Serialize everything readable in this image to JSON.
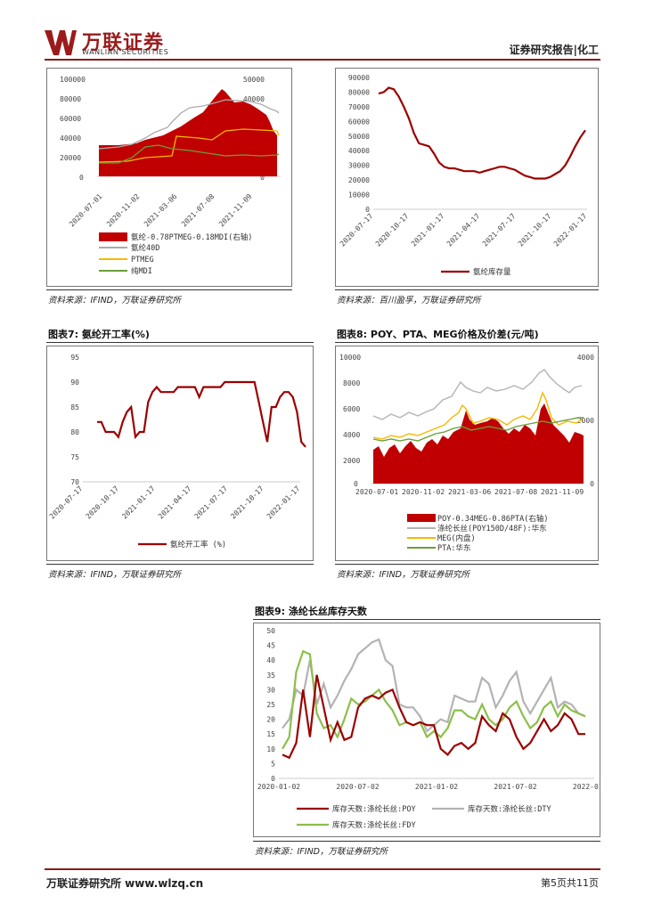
{
  "header": {
    "brand_cn": "万联证券",
    "brand_en": "WANLIAN SECURITIES",
    "report_title": "证券研究报告|化工",
    "brand_color": "#9b1b1b"
  },
  "footer": {
    "company": "万联证券研究所 www.wlzq.cn",
    "page": "第5页共11页"
  },
  "charts": {
    "chart5": {
      "source": "资料来源：IFIND，万联证券研究所",
      "chart_data": {
        "type": "area",
        "x_ticks": [
          "2020-07-01",
          "2020-11-02",
          "2021-03-06",
          "2021-07-08",
          "2021-11-09"
        ],
        "y_left_ticks": [
          "100000",
          "80000",
          "60000",
          "40000",
          "20000",
          "0"
        ],
        "y_right_ticks": [
          "50000",
          "40000",
          "30000",
          "20000",
          "10000",
          "0"
        ],
        "ylim_left": [
          0,
          100000
        ],
        "ylim_right": [
          0,
          50000
        ],
        "legend": [
          "氨纶-0.78PTMEG-0.18MDI(右轴)",
          "氨纶40D",
          "PTMEG",
          "纯MDI"
        ]
      }
    },
    "chart6": {
      "source": "资料来源：百川盈孚，万联证券研究所",
      "chart_data": {
        "type": "line",
        "x_ticks": [
          "2020-07-17",
          "2020-10-17",
          "2021-01-17",
          "2021-04-17",
          "2021-07-17",
          "2021-10-17",
          "2022-01-17"
        ],
        "y_ticks": [
          "90000",
          "80000",
          "70000",
          "60000",
          "50000",
          "40000",
          "30000",
          "20000",
          "10000",
          "0"
        ],
        "ylim": [
          0,
          90000
        ],
        "legend": [
          "氨纶库存量"
        ],
        "series": [
          {
            "name": "氨纶库存量",
            "values": [
              79000,
              80000,
              83000,
              82000,
              77000,
              70000,
              62000,
              52000,
              45000,
              44000,
              43000,
              38000,
              32000,
              29000,
              28000,
              28000,
              27000,
              26000,
              26000,
              26000,
              25000,
              26000,
              27000,
              28000,
              29000,
              29000,
              28000,
              27000,
              25000,
              23000,
              22000,
              21000,
              21000,
              21000,
              22000,
              24000,
              26000,
              30000,
              36000,
              43000,
              49000,
              54000
            ]
          }
        ]
      }
    },
    "chart7": {
      "caption": "图表7: 氨纶开工率(%)",
      "source": "资料来源：IFIND，万联证券研究所",
      "chart_data": {
        "type": "line",
        "x_ticks": [
          "2020-07-17",
          "2020-10-17",
          "2021-01-17",
          "2021-04-17",
          "2021-07-17",
          "2021-10-17",
          "2022-01-17"
        ],
        "y_ticks": [
          "95",
          "90",
          "85",
          "80",
          "75",
          "70"
        ],
        "ylim": [
          70,
          95
        ],
        "legend": [
          "氨纶开工率 (%)"
        ],
        "series": [
          {
            "name": "氨纶开工率",
            "values": [
              82,
              82,
              80,
              80,
              80,
              79,
              82,
              84,
              85,
              79,
              80,
              80,
              86,
              88,
              89,
              88,
              88,
              88,
              88,
              89,
              89,
              89,
              89,
              89,
              87,
              89,
              89,
              89,
              89,
              89,
              90,
              90,
              90,
              90,
              90,
              90,
              90,
              90,
              86,
              82,
              78,
              85,
              85,
              87,
              88,
              88,
              87,
              84,
              78,
              77
            ]
          }
        ]
      }
    },
    "chart8": {
      "caption": "图表8: POY、PTA、MEG价格及价差(元/吨)",
      "source": "资料来源：IFIND，万联证券研究所",
      "chart_data": {
        "type": "area",
        "x_ticks": [
          "2020-07-01",
          "2020-11-02",
          "2021-03-06",
          "2021-07-08",
          "2021-11-09"
        ],
        "y_left_ticks": [
          "10000",
          "8000",
          "6000",
          "4000",
          "2000",
          "0"
        ],
        "y_right_ticks": [
          "4000",
          "2000",
          "0"
        ],
        "ylim_left": [
          0,
          10000
        ],
        "ylim_right": [
          0,
          4000
        ],
        "legend": [
          "POY-0.34MEG-0.86PTA(右轴)",
          "涤纶长丝(POY150D/48F):华东",
          "MEG(内盘)",
          "PTA:华东"
        ]
      }
    },
    "chart9": {
      "caption": "图表9: 涤纶长丝库存天数",
      "source": "资料来源：IFIND，万联证券研究所",
      "chart_data": {
        "type": "line",
        "x_ticks": [
          "2020-01-02",
          "2020-07-02",
          "2021-01-02",
          "2021-07-02",
          "2022-01-02"
        ],
        "y_ticks": [
          "50",
          "45",
          "40",
          "35",
          "30",
          "25",
          "20",
          "15",
          "10",
          "5",
          "0"
        ],
        "ylim": [
          0,
          50
        ],
        "legend": [
          "库存天数:涤纶长丝:POY",
          "库存天数:涤纶长丝:DTY",
          "库存天数:涤纶长丝:FDY"
        ],
        "series": [
          {
            "name": "库存天数:涤纶长丝:POY",
            "values": [
              8,
              7,
              12,
              30,
              14,
              35,
              24,
              13,
              19,
              13,
              14,
              24,
              27,
              28,
              27,
              29,
              30,
              24,
              19,
              18,
              19,
              18,
              18,
              10,
              8,
              11,
              12,
              10,
              12,
              21,
              18,
              16,
              22,
              20,
              14,
              10,
              12,
              16,
              20,
              16,
              18,
              22,
              20,
              15,
              15
            ]
          },
          {
            "name": "库存天数:涤纶长丝:DTY",
            "values": [
              17,
              20,
              30,
              28,
              40,
              25,
              32,
              24,
              28,
              33,
              37,
              42,
              44,
              46,
              47,
              40,
              38,
              25,
              24,
              24,
              21,
              16,
              18,
              20,
              19,
              28,
              27,
              26,
              26,
              34,
              32,
              24,
              28,
              33,
              36,
              26,
              22,
              26,
              30,
              34,
              24,
              26,
              25,
              22,
              21
            ]
          },
          {
            "name": "库存天数:涤纶长丝:FDY",
            "values": [
              10,
              14,
              36,
              43,
              42,
              22,
              17,
              18,
              14,
              20,
              27,
              25,
              26,
              28,
              30,
              26,
              23,
              18,
              19,
              18,
              19,
              14,
              16,
              14,
              17,
              23,
              23,
              21,
              20,
              25,
              20,
              18,
              20,
              24,
              26,
              21,
              17,
              19,
              24,
              26,
              21,
              25,
              23,
              22,
              21
            ]
          }
        ]
      }
    }
  }
}
